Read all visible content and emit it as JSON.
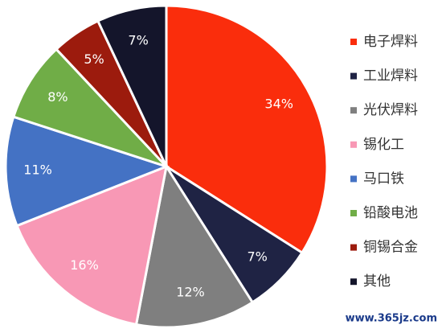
{
  "chart_data": {
    "type": "pie",
    "categories": [
      "电子焊料",
      "工业焊料",
      "光伏焊料",
      "锡化工",
      "马口铁",
      "铅酸电池",
      "铜锡合金",
      "其他"
    ],
    "values": [
      34,
      7,
      12,
      16,
      11,
      8,
      5,
      7
    ],
    "value_labels": [
      "34%",
      "7%",
      "12%",
      "16%",
      "11%",
      "8%",
      "5%",
      "7%"
    ],
    "colors": [
      "#fa2d0c",
      "#1f2344",
      "#7f7f7f",
      "#f898b5",
      "#4472c4",
      "#70ad47",
      "#9c1b0d",
      "#14152b"
    ],
    "legend": "right",
    "watermark": "www.365jz.com"
  }
}
